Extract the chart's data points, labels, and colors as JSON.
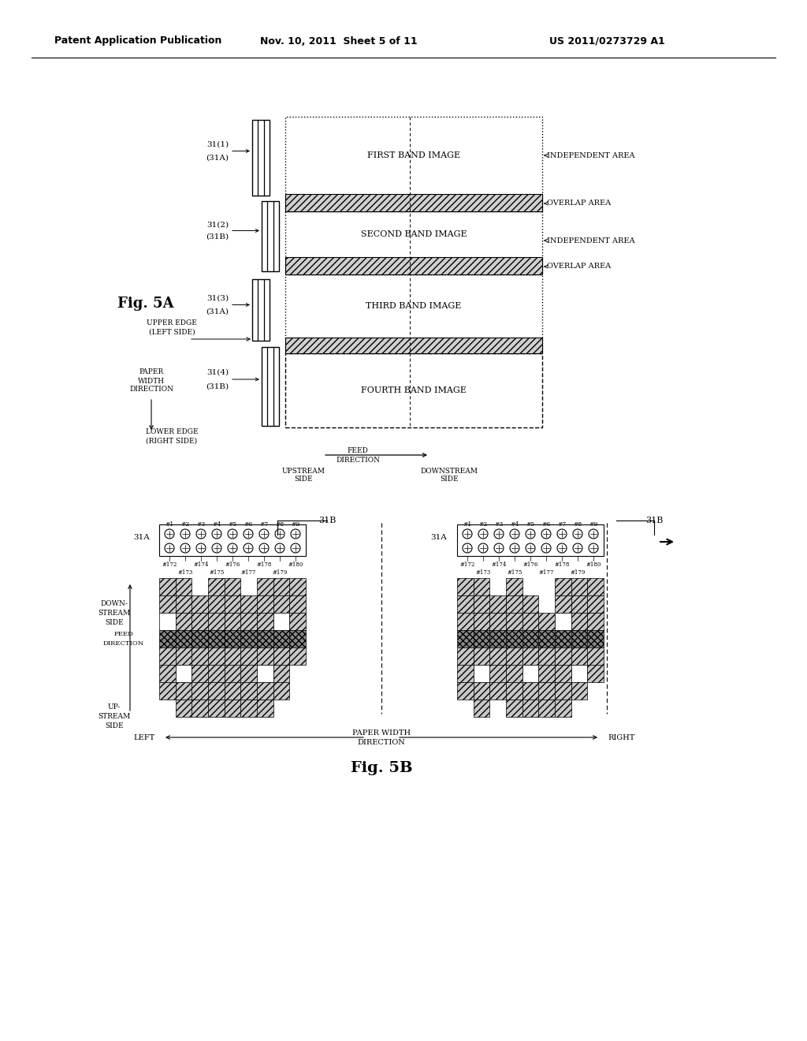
{
  "bg_color": "#ffffff",
  "header_left": "Patent Application Publication",
  "header_mid": "Nov. 10, 2011  Sheet 5 of 11",
  "header_right": "US 2011/0273729 A1"
}
